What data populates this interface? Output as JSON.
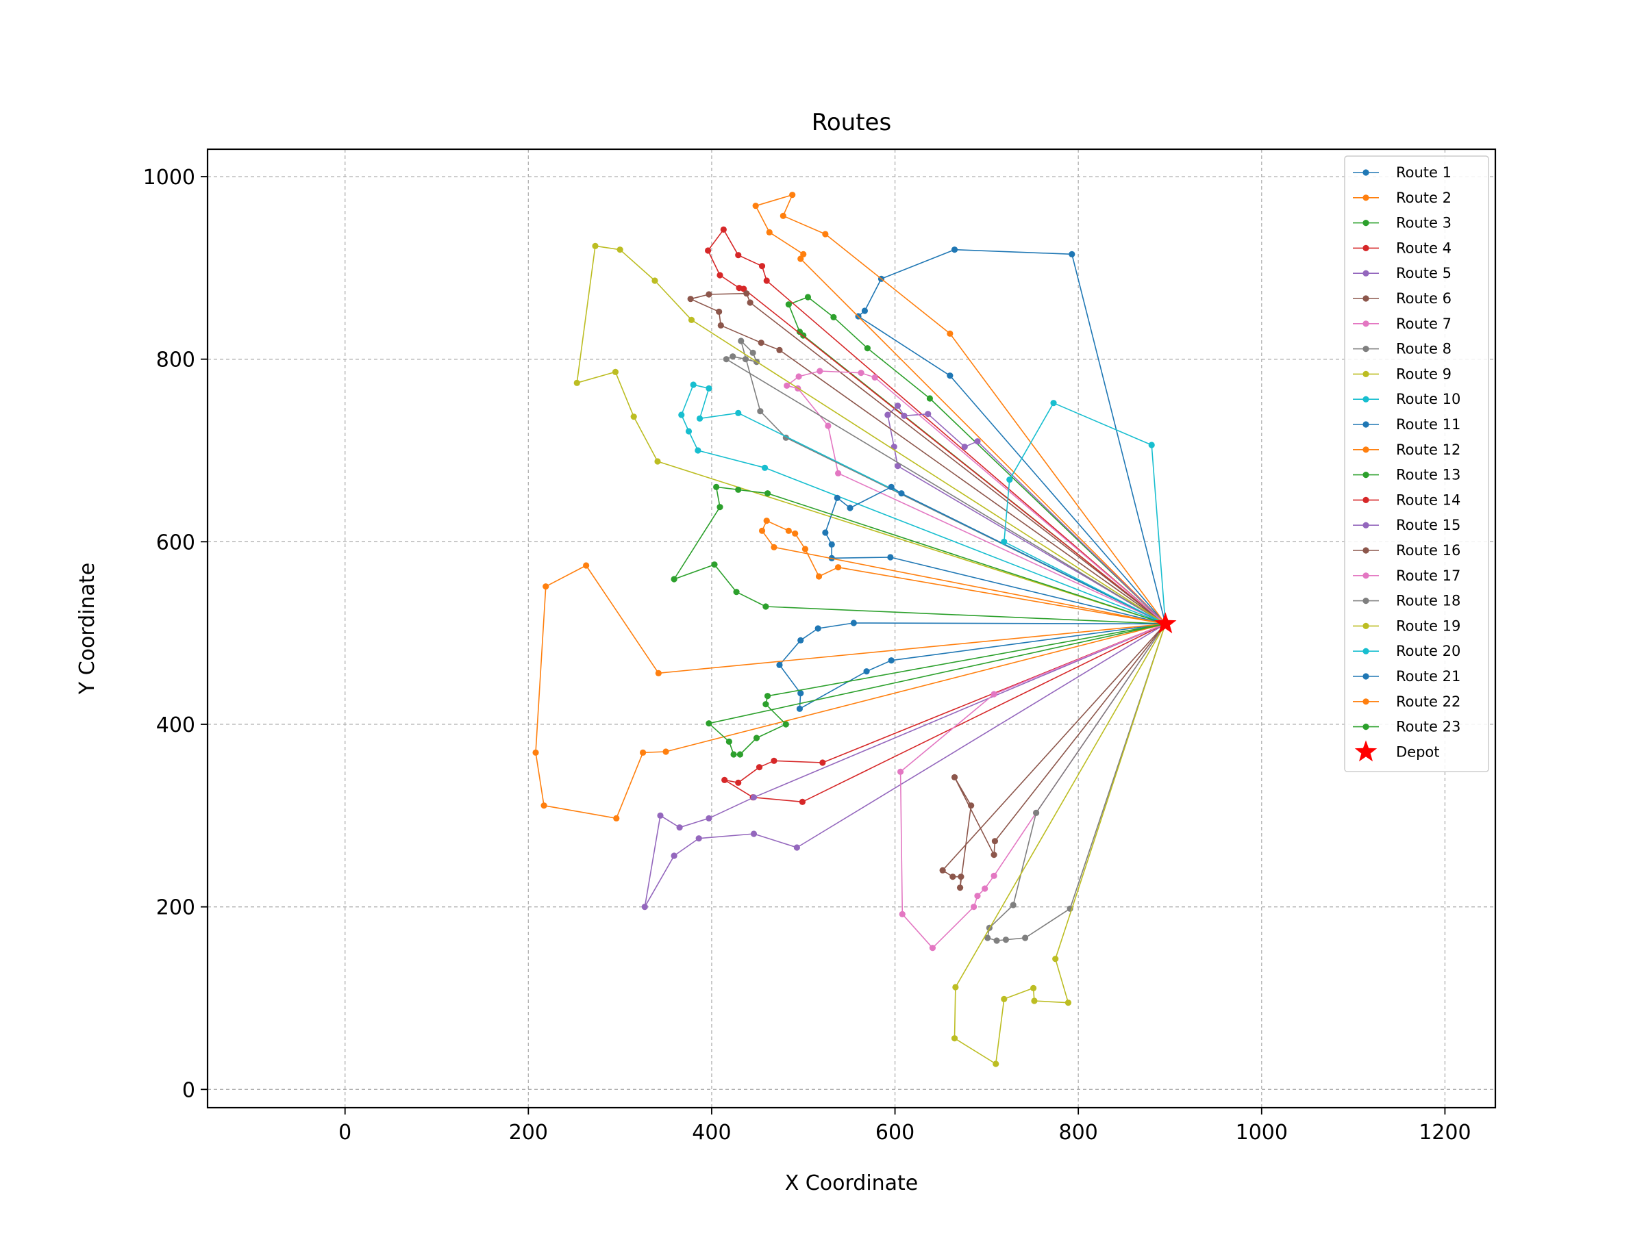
{
  "chart_data": {
    "type": "line",
    "title": "Routes",
    "xlabel": "X Coordinate",
    "ylabel": "Y Coordinate",
    "xlim": [
      -150,
      1255
    ],
    "ylim": [
      -20,
      1030
    ],
    "xticks": [
      0,
      200,
      400,
      600,
      800,
      1000,
      1200
    ],
    "yticks": [
      0,
      200,
      400,
      600,
      800,
      1000
    ],
    "grid": true,
    "legend_position": "top-right",
    "depot": {
      "name": "Depot",
      "x": 895,
      "y": 510,
      "color": "#ff0000"
    },
    "series": [
      {
        "name": "Route 1",
        "color": "#1f77b4",
        "points": [
          [
            895,
            510
          ],
          [
            793,
            915
          ],
          [
            665,
            920
          ],
          [
            585,
            888
          ],
          [
            567,
            853
          ],
          [
            560,
            847
          ],
          [
            660,
            782
          ],
          [
            895,
            510
          ]
        ]
      },
      {
        "name": "Route 2",
        "color": "#ff7f0e",
        "points": [
          [
            895,
            510
          ],
          [
            660,
            828
          ],
          [
            524,
            937
          ],
          [
            478,
            957
          ],
          [
            488,
            980
          ],
          [
            448,
            968
          ],
          [
            463,
            939
          ],
          [
            500,
            915
          ],
          [
            497,
            910
          ],
          [
            895,
            510
          ]
        ]
      },
      {
        "name": "Route 3",
        "color": "#2ca02c",
        "points": [
          [
            895,
            510
          ],
          [
            638,
            757
          ],
          [
            570,
            812
          ],
          [
            533,
            846
          ],
          [
            505,
            868
          ],
          [
            484,
            860
          ],
          [
            496,
            830
          ],
          [
            500,
            826
          ],
          [
            895,
            510
          ]
        ]
      },
      {
        "name": "Route 4",
        "color": "#d62728",
        "points": [
          [
            895,
            510
          ],
          [
            460,
            886
          ],
          [
            455,
            902
          ],
          [
            429,
            914
          ],
          [
            413,
            942
          ],
          [
            396,
            919
          ],
          [
            409,
            892
          ],
          [
            430,
            878
          ],
          [
            435,
            877
          ],
          [
            895,
            510
          ]
        ]
      },
      {
        "name": "Route 5",
        "color": "#9467bd",
        "points": [
          [
            895,
            510
          ],
          [
            690,
            710
          ],
          [
            676,
            704
          ],
          [
            636,
            740
          ],
          [
            610,
            738
          ],
          [
            603,
            749
          ],
          [
            592,
            739
          ],
          [
            599,
            704
          ],
          [
            603,
            683
          ],
          [
            895,
            510
          ]
        ]
      },
      {
        "name": "Route 6",
        "color": "#8c564b",
        "points": [
          [
            895,
            510
          ],
          [
            474,
            810
          ],
          [
            454,
            818
          ],
          [
            410,
            837
          ],
          [
            408,
            852
          ],
          [
            377,
            866
          ],
          [
            397,
            871
          ],
          [
            438,
            872
          ],
          [
            442,
            862
          ],
          [
            895,
            510
          ]
        ]
      },
      {
        "name": "Route 7",
        "color": "#e377c2",
        "points": [
          [
            895,
            510
          ],
          [
            538,
            675
          ],
          [
            527,
            727
          ],
          [
            494,
            768
          ],
          [
            482,
            771
          ],
          [
            495,
            781
          ],
          [
            518,
            787
          ],
          [
            563,
            785
          ],
          [
            578,
            780
          ],
          [
            895,
            510
          ]
        ]
      },
      {
        "name": "Route 8",
        "color": "#7f7f7f",
        "points": [
          [
            895,
            510
          ],
          [
            481,
            714
          ],
          [
            453,
            743
          ],
          [
            432,
            820
          ],
          [
            445,
            807
          ],
          [
            449,
            797
          ],
          [
            437,
            800
          ],
          [
            423,
            803
          ],
          [
            416,
            800
          ],
          [
            895,
            510
          ]
        ]
      },
      {
        "name": "Route 9",
        "color": "#bcbd22",
        "points": [
          [
            895,
            510
          ],
          [
            378,
            843
          ],
          [
            338,
            886
          ],
          [
            300,
            920
          ],
          [
            273,
            924
          ],
          [
            253,
            774
          ],
          [
            295,
            786
          ],
          [
            315,
            737
          ],
          [
            341,
            688
          ],
          [
            895,
            510
          ]
        ]
      },
      {
        "name": "Route 10",
        "color": "#17becf",
        "points": [
          [
            895,
            510
          ],
          [
            458,
            681
          ],
          [
            385,
            700
          ],
          [
            375,
            721
          ],
          [
            367,
            739
          ],
          [
            380,
            772
          ],
          [
            397,
            768
          ],
          [
            387,
            735
          ],
          [
            429,
            741
          ],
          [
            895,
            510
          ]
        ]
      },
      {
        "name": "Route 11",
        "color": "#1f77b4",
        "points": [
          [
            895,
            510
          ],
          [
            595,
            583
          ],
          [
            531,
            582
          ],
          [
            531,
            597
          ],
          [
            524,
            610
          ],
          [
            537,
            648
          ],
          [
            551,
            637
          ],
          [
            596,
            660
          ],
          [
            607,
            653
          ],
          [
            895,
            510
          ]
        ]
      },
      {
        "name": "Route 12",
        "color": "#ff7f0e",
        "points": [
          [
            895,
            510
          ],
          [
            538,
            572
          ],
          [
            517,
            562
          ],
          [
            502,
            592
          ],
          [
            491,
            609
          ],
          [
            484,
            612
          ],
          [
            460,
            623
          ],
          [
            455,
            612
          ],
          [
            468,
            594
          ],
          [
            895,
            510
          ]
        ]
      },
      {
        "name": "Route 13",
        "color": "#2ca02c",
        "points": [
          [
            895,
            510
          ],
          [
            461,
            653
          ],
          [
            429,
            657
          ],
          [
            405,
            660
          ],
          [
            409,
            638
          ],
          [
            359,
            559
          ],
          [
            403,
            575
          ],
          [
            427,
            545
          ],
          [
            459,
            529
          ],
          [
            895,
            510
          ]
        ]
      },
      {
        "name": "Route 14",
        "color": "#d62728",
        "points": [
          [
            895,
            510
          ],
          [
            521,
            358
          ],
          [
            468,
            360
          ],
          [
            452,
            353
          ],
          [
            429,
            336
          ],
          [
            414,
            339
          ],
          [
            445,
            320
          ],
          [
            499,
            315
          ],
          [
            895,
            510
          ]
        ]
      },
      {
        "name": "Route 15",
        "color": "#9467bd",
        "points": [
          [
            895,
            510
          ],
          [
            446,
            320
          ],
          [
            397,
            297
          ],
          [
            365,
            287
          ],
          [
            344,
            300
          ],
          [
            327,
            200
          ],
          [
            359,
            256
          ],
          [
            386,
            275
          ],
          [
            446,
            280
          ],
          [
            493,
            265
          ],
          [
            895,
            510
          ]
        ]
      },
      {
        "name": "Route 16",
        "color": "#8c564b",
        "points": [
          [
            895,
            510
          ],
          [
            709,
            272
          ],
          [
            708,
            257
          ],
          [
            665,
            342
          ],
          [
            683,
            311
          ],
          [
            671,
            221
          ],
          [
            672,
            233
          ],
          [
            663,
            233
          ],
          [
            652,
            240
          ],
          [
            895,
            510
          ]
        ]
      },
      {
        "name": "Route 17",
        "color": "#e377c2",
        "points": [
          [
            895,
            510
          ],
          [
            754,
            303
          ],
          [
            708,
            234
          ],
          [
            698,
            220
          ],
          [
            690,
            212
          ],
          [
            686,
            200
          ],
          [
            641,
            155
          ],
          [
            608,
            192
          ],
          [
            606,
            348
          ],
          [
            708,
            433
          ],
          [
            895,
            510
          ]
        ]
      },
      {
        "name": "Route 18",
        "color": "#7f7f7f",
        "points": [
          [
            895,
            510
          ],
          [
            791,
            198
          ],
          [
            742,
            166
          ],
          [
            721,
            164
          ],
          [
            711,
            163
          ],
          [
            701,
            166
          ],
          [
            703,
            177
          ],
          [
            729,
            202
          ],
          [
            754,
            303
          ],
          [
            895,
            510
          ]
        ]
      },
      {
        "name": "Route 19",
        "color": "#bcbd22",
        "points": [
          [
            895,
            510
          ],
          [
            775,
            143
          ],
          [
            789,
            95
          ],
          [
            752,
            97
          ],
          [
            751,
            111
          ],
          [
            719,
            99
          ],
          [
            710,
            28
          ],
          [
            665,
            56
          ],
          [
            666,
            112
          ],
          [
            895,
            510
          ]
        ]
      },
      {
        "name": "Route 20",
        "color": "#17becf",
        "points": [
          [
            895,
            510
          ],
          [
            880,
            706
          ],
          [
            773,
            752
          ],
          [
            725,
            668
          ],
          [
            719,
            600
          ],
          [
            895,
            510
          ]
        ]
      },
      {
        "name": "Route 21",
        "color": "#1f77b4",
        "points": [
          [
            895,
            510
          ],
          [
            555,
            511
          ],
          [
            516,
            505
          ],
          [
            497,
            492
          ],
          [
            474,
            465
          ],
          [
            497,
            434
          ],
          [
            496,
            417
          ],
          [
            569,
            458
          ],
          [
            596,
            470
          ],
          [
            895,
            510
          ]
        ]
      },
      {
        "name": "Route 22",
        "color": "#ff7f0e",
        "points": [
          [
            895,
            510
          ],
          [
            342,
            456
          ],
          [
            263,
            574
          ],
          [
            219,
            551
          ],
          [
            208,
            369
          ],
          [
            217,
            311
          ],
          [
            296,
            297
          ],
          [
            325,
            369
          ],
          [
            350,
            370
          ],
          [
            895,
            510
          ]
        ]
      },
      {
        "name": "Route 23",
        "color": "#2ca02c",
        "points": [
          [
            895,
            510
          ],
          [
            461,
            431
          ],
          [
            459,
            422
          ],
          [
            481,
            400
          ],
          [
            449,
            385
          ],
          [
            431,
            367
          ],
          [
            424,
            367
          ],
          [
            419,
            381
          ],
          [
            397,
            401
          ],
          [
            895,
            510
          ]
        ]
      }
    ]
  }
}
